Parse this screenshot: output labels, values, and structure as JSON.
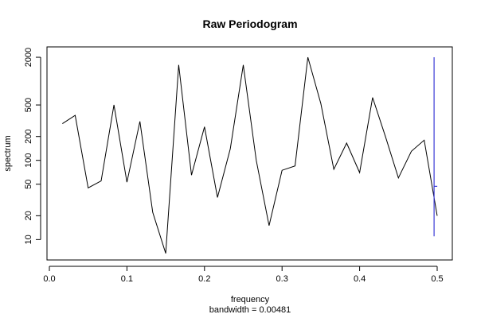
{
  "chart_data": {
    "type": "line",
    "title": "Raw Periodogram",
    "xlabel": "frequency",
    "sublabel": "bandwidth = 0.00481",
    "ylabel": "spectrum",
    "x_scale": "linear",
    "y_scale": "log",
    "xlim": [
      0.0,
      0.5
    ],
    "ylim": [
      6.5,
      2300
    ],
    "x_ticks": [
      0.0,
      0.1,
      0.2,
      0.3,
      0.4,
      0.5
    ],
    "x_tick_labels": [
      "0.0",
      "0.1",
      "0.2",
      "0.3",
      "0.4",
      "0.5"
    ],
    "y_ticks": [
      10,
      20,
      50,
      100,
      200,
      500,
      2000
    ],
    "y_tick_labels": [
      "10",
      "20",
      "50",
      "100",
      "200",
      "500",
      "2000"
    ],
    "grid": false,
    "series": [
      {
        "color": "#000000",
        "x": [
          0.0167,
          0.0333,
          0.05,
          0.0667,
          0.0833,
          0.1,
          0.1167,
          0.1333,
          0.15,
          0.1667,
          0.1833,
          0.2,
          0.2167,
          0.2333,
          0.25,
          0.2667,
          0.2833,
          0.3,
          0.3167,
          0.3333,
          0.35,
          0.3667,
          0.3833,
          0.4,
          0.4167,
          0.4333,
          0.45,
          0.4667,
          0.4833,
          0.5
        ],
        "values": [
          290,
          370,
          45,
          55,
          500,
          53,
          310,
          22,
          6.7,
          1600,
          65,
          265,
          34,
          140,
          1600,
          100,
          15,
          75,
          85,
          2000,
          520,
          77,
          165,
          70,
          620,
          200,
          60,
          130,
          180,
          20
        ]
      }
    ],
    "confidence_bar": {
      "color": "#3a3ad6",
      "x": 0.496,
      "lower": 11,
      "upper": 2000,
      "center": 47
    }
  }
}
